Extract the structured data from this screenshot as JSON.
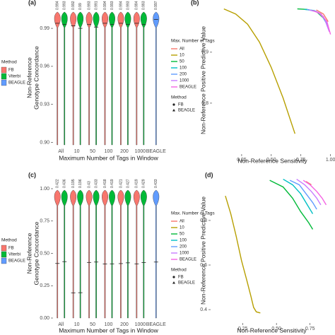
{
  "chart_data": [
    {
      "panel": "(a)",
      "type": "violin",
      "x_label": "Maximum Number of Tags in Window",
      "y_label": [
        "Non-Reference",
        "Genotype Concordance"
      ],
      "categories": [
        "All",
        "10",
        "50",
        "100",
        "200",
        "1000",
        "BEAGLE"
      ],
      "series": [
        {
          "name": "FB",
          "color": "#F8766D",
          "values": [
            0.994,
            0.992,
            0.993,
            0.994,
            0.994,
            0.994,
            null
          ]
        },
        {
          "name": "Viterbi",
          "color": "#00BA38",
          "values": [
            0.993,
            0.99,
            0.991,
            0.993,
            0.993,
            0.993,
            null
          ]
        },
        {
          "name": "BEAGLE",
          "color": "#619CFF",
          "values": [
            null,
            null,
            null,
            null,
            null,
            null,
            0.997
          ]
        }
      ],
      "legend_title": "Method",
      "ylim": [
        0.898,
        1.004
      ],
      "yticks": [
        {
          "value": 0.9,
          "label": "0.90"
        },
        0.93,
        0.96,
        0.99
      ]
    },
    {
      "panel": "(b)",
      "type": "line",
      "x_label": "Non-Reference Sensitivity",
      "y_label": "Non-Reference Positive Predictive Value",
      "series": [
        {
          "name": "All",
          "color": "#F8766D",
          "x": [
            0.88,
            0.94,
            0.98
          ],
          "values": [
            0.983,
            0.975,
            0.96
          ]
        },
        {
          "name": "10",
          "color": "#B79F00",
          "x": [
            0.1,
            0.2,
            0.3,
            0.4,
            0.5,
            0.6,
            0.7
          ],
          "values": [
            0.985,
            0.975,
            0.955,
            0.92,
            0.87,
            0.81,
            0.74
          ]
        },
        {
          "name": "50",
          "color": "#00BA38",
          "x": [
            0.72,
            0.8,
            0.88,
            0.95
          ],
          "values": [
            0.985,
            0.984,
            0.98,
            0.965
          ]
        },
        {
          "name": "100",
          "color": "#00BFC4",
          "x": [
            0.78,
            0.86,
            0.92,
            0.97
          ],
          "values": [
            0.984,
            0.982,
            0.975,
            0.955
          ]
        },
        {
          "name": "200",
          "color": "#619CFF",
          "x": [
            0.8,
            0.88,
            0.94,
            0.98
          ],
          "values": [
            0.984,
            0.98,
            0.97,
            0.95
          ]
        },
        {
          "name": "1000",
          "color": "#C77CFF",
          "x": [
            0.82,
            0.9,
            0.95,
            0.99
          ],
          "values": [
            0.983,
            0.978,
            0.965,
            0.94
          ]
        },
        {
          "name": "BEAGLE",
          "color": "#F564E3",
          "x": [
            0.85,
            0.92,
            0.97,
            1.0
          ],
          "values": [
            0.982,
            0.975,
            0.96,
            0.935
          ]
        }
      ],
      "legend_title": "Max. Number of Tags",
      "shape_legend": {
        "title": "Method",
        "entries": [
          "FB",
          "BEAGLE"
        ]
      },
      "xlim": [
        0,
        1.02
      ],
      "xticks": [
        0.25,
        {
          "value": 0.5,
          "label": "0.50"
        },
        0.75,
        {
          "value": 1,
          "label": "1.00"
        }
      ],
      "ylim": [
        0.7,
        0.99
      ],
      "yticks": [
        0.8,
        0.9
      ]
    },
    {
      "panel": "(c)",
      "type": "violin",
      "x_label": "Maximum Number of Tags in Window",
      "y_label": [
        "Non-Reference",
        "Genotype Concordance"
      ],
      "categories": [
        "All",
        "10",
        "50",
        "100",
        "200",
        "1000",
        "BEAGLE"
      ],
      "series": [
        {
          "name": "FB",
          "color": "#F8766D",
          "values": [
            0.422,
            0.195,
            0.43,
            0.418,
            0.421,
            0.419,
            null
          ]
        },
        {
          "name": "Viterbi",
          "color": "#00BA38",
          "values": [
            0.436,
            0.196,
            0.433,
            0.419,
            0.427,
            0.429,
            null
          ]
        },
        {
          "name": "BEAGLE",
          "color": "#619CFF",
          "values": [
            null,
            null,
            null,
            null,
            null,
            null,
            0.433
          ]
        }
      ],
      "legend_title": "Method",
      "ylim": [
        0,
        1
      ],
      "yticks": [
        {
          "value": 0,
          "label": "0.00"
        },
        0.25,
        {
          "value": 0.5,
          "label": "0.50"
        },
        0.75,
        {
          "value": 1,
          "label": "1.00"
        }
      ]
    },
    {
      "panel": "(d)",
      "type": "line",
      "x_label": "Non-Reference Sensitivity",
      "y_label": "Non-Reference Positive Predictive Value",
      "series": [
        {
          "name": "All",
          "color": "#F8766D",
          "x": [
            0.72,
            0.76
          ],
          "values": [
            0.975,
            0.96
          ]
        },
        {
          "name": "10",
          "color": "#B79F00",
          "x": [
            0.12,
            0.16,
            0.2,
            0.24,
            0.28,
            0.31,
            0.33,
            0.35,
            0.38
          ],
          "values": [
            0.91,
            0.83,
            0.73,
            0.62,
            0.53,
            0.46,
            0.41,
            0.39,
            0.385
          ]
        },
        {
          "name": "50",
          "color": "#00BA38",
          "x": [
            0.45,
            0.55,
            0.62,
            0.68,
            0.74,
            0.77
          ],
          "values": [
            0.98,
            0.95,
            0.9,
            0.84,
            0.79,
            0.76
          ]
        },
        {
          "name": "100",
          "color": "#00BFC4",
          "x": [
            0.55,
            0.62,
            0.68,
            0.73,
            0.77
          ],
          "values": [
            0.985,
            0.96,
            0.92,
            0.87,
            0.83
          ]
        },
        {
          "name": "200",
          "color": "#619CFF",
          "x": [
            0.6,
            0.67,
            0.72,
            0.77,
            0.8
          ],
          "values": [
            0.98,
            0.96,
            0.92,
            0.88,
            0.85
          ]
        },
        {
          "name": "1000",
          "color": "#C77CFF",
          "x": [
            0.65,
            0.71,
            0.76,
            0.8,
            0.83
          ],
          "values": [
            0.985,
            0.96,
            0.93,
            0.9,
            0.87
          ]
        },
        {
          "name": "BEAGLE",
          "color": "#F564E3",
          "x": [
            0.7,
            0.75,
            0.8,
            0.84,
            0.87
          ],
          "values": [
            0.98,
            0.96,
            0.93,
            0.9,
            0.87
          ]
        }
      ],
      "legend_title": "Max. Number of Tags",
      "shape_legend": {
        "title": "Method",
        "entries": [
          "FB",
          "BEAGLE"
        ]
      },
      "xlim": [
        0.01,
        0.92
      ],
      "xticks": [
        0.25,
        {
          "value": 0.5,
          "label": "0.50"
        },
        0.75
      ],
      "ylim": [
        0.34,
        0.99
      ],
      "yticks": [
        0.4,
        0.6,
        0.8
      ]
    }
  ]
}
